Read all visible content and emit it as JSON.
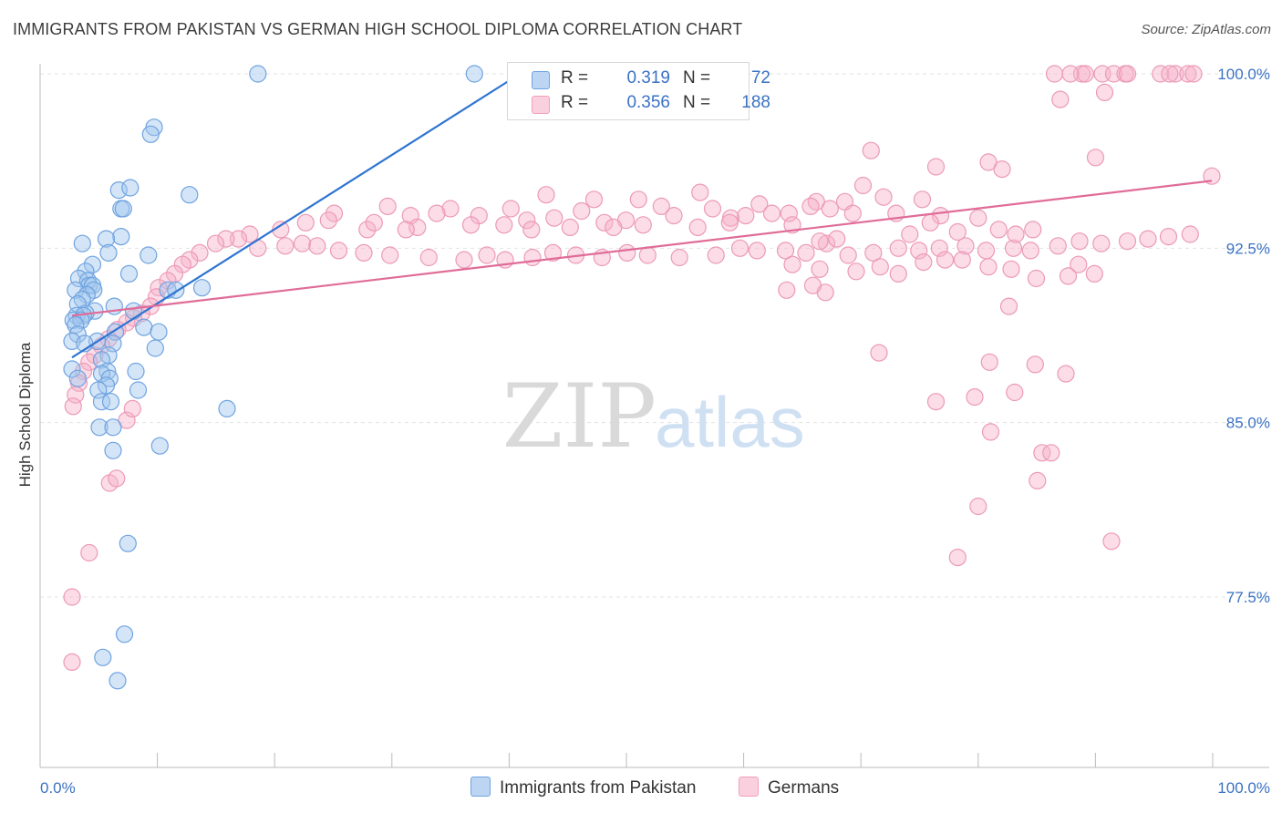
{
  "title": "IMMIGRANTS FROM PAKISTAN VS GERMAN HIGH SCHOOL DIPLOMA CORRELATION CHART",
  "source": "Source: ZipAtlas.com",
  "watermark": {
    "zip": "ZIP",
    "atlas": "atlas"
  },
  "legend": {
    "blue": {
      "r_label": "R =",
      "r_value": "0.319",
      "n_label": "N =",
      "n_value": "72",
      "color": "#6fa3e0"
    },
    "pink": {
      "r_label": "R =",
      "r_value": "0.356",
      "n_label": "N =",
      "n_value": "188",
      "color": "#f0a0bc"
    }
  },
  "bottom_legend": {
    "blue": "Immigrants from Pakistan",
    "pink": "Germans"
  },
  "chart_data": {
    "type": "scatter",
    "title": "IMMIGRANTS FROM PAKISTAN VS GERMAN HIGH SCHOOL DIPLOMA CORRELATION CHART",
    "xlabel": "",
    "ylabel": "High School Diploma",
    "xlim": [
      0,
      100
    ],
    "ylim": [
      71.2,
      101
    ],
    "x_tick_labels": [
      "0.0%",
      "100.0%"
    ],
    "y_ticks": [
      77.5,
      85.0,
      92.5,
      100.0
    ],
    "y_tick_labels": [
      "77.5%",
      "85.0%",
      "92.5%",
      "100.0%"
    ],
    "grid": true,
    "legend_position": "top-center",
    "series": [
      {
        "name": "Immigrants from Pakistan",
        "color": "#6fa3e0",
        "line_color": "#2f75d1",
        "trend": {
          "x0": 0,
          "y0": 87.8,
          "x1": 39.3,
          "y1": 100.0
        },
        "points": [
          [
            16.3,
            100
          ],
          [
            35.3,
            100
          ],
          [
            7.2,
            97.7
          ],
          [
            6.9,
            97.4
          ],
          [
            4.1,
            95.0
          ],
          [
            5.1,
            95.1
          ],
          [
            10.3,
            94.8
          ],
          [
            4.3,
            94.2
          ],
          [
            4.5,
            94.2
          ],
          [
            4.3,
            93.0
          ],
          [
            3.0,
            92.9
          ],
          [
            0.9,
            92.7
          ],
          [
            3.2,
            92.3
          ],
          [
            6.7,
            92.2
          ],
          [
            1.8,
            91.8
          ],
          [
            1.2,
            91.5
          ],
          [
            5.0,
            91.4
          ],
          [
            0.6,
            91.2
          ],
          [
            1.4,
            91.1
          ],
          [
            1.5,
            90.9
          ],
          [
            1.8,
            90.9
          ],
          [
            1.9,
            90.7
          ],
          [
            0.3,
            90.7
          ],
          [
            8.4,
            90.7
          ],
          [
            9.1,
            90.7
          ],
          [
            11.4,
            90.8
          ],
          [
            1.3,
            90.5
          ],
          [
            0.9,
            90.3
          ],
          [
            0.5,
            90.1
          ],
          [
            3.7,
            90.0
          ],
          [
            5.4,
            89.8
          ],
          [
            2.0,
            89.8
          ],
          [
            1.2,
            89.7
          ],
          [
            0.4,
            89.6
          ],
          [
            1.0,
            89.6
          ],
          [
            0.1,
            89.4
          ],
          [
            0.8,
            89.4
          ],
          [
            0.3,
            89.2
          ],
          [
            6.3,
            89.1
          ],
          [
            3.8,
            88.9
          ],
          [
            7.6,
            88.9
          ],
          [
            0.5,
            88.8
          ],
          [
            2.2,
            88.5
          ],
          [
            0.0,
            88.5
          ],
          [
            1.1,
            88.4
          ],
          [
            3.6,
            88.4
          ],
          [
            7.3,
            88.2
          ],
          [
            3.2,
            87.9
          ],
          [
            2.6,
            87.7
          ],
          [
            0.0,
            87.3
          ],
          [
            3.1,
            87.2
          ],
          [
            2.6,
            87.1
          ],
          [
            3.3,
            86.9
          ],
          [
            0.5,
            86.9
          ],
          [
            5.6,
            87.2
          ],
          [
            3.0,
            86.6
          ],
          [
            2.3,
            86.4
          ],
          [
            5.8,
            86.4
          ],
          [
            2.6,
            85.9
          ],
          [
            3.4,
            85.9
          ],
          [
            13.6,
            85.6
          ],
          [
            2.4,
            84.8
          ],
          [
            3.6,
            84.8
          ],
          [
            7.7,
            84.0
          ],
          [
            3.6,
            83.8
          ],
          [
            4.9,
            79.8
          ],
          [
            4.6,
            75.9
          ],
          [
            2.7,
            74.9
          ],
          [
            4.0,
            73.9
          ]
        ]
      },
      {
        "name": "Germans",
        "color": "#f0a0bc",
        "line_color": "#e06c97",
        "trend": {
          "x0": 0,
          "y0": 89.6,
          "x1": 100,
          "y1": 95.4
        },
        "points": [
          [
            86.2,
            100
          ],
          [
            88.6,
            100
          ],
          [
            88.9,
            100
          ],
          [
            87.6,
            100
          ],
          [
            90.4,
            100
          ],
          [
            91.4,
            100
          ],
          [
            92.4,
            100
          ],
          [
            92.6,
            100
          ],
          [
            95.5,
            100
          ],
          [
            96.8,
            100
          ],
          [
            96.3,
            100
          ],
          [
            97.9,
            100
          ],
          [
            98.4,
            100
          ],
          [
            86.7,
            98.9
          ],
          [
            90.6,
            99.2
          ],
          [
            70.1,
            96.7
          ],
          [
            75.8,
            96.0
          ],
          [
            80.4,
            96.2
          ],
          [
            81.6,
            95.9
          ],
          [
            89.8,
            96.4
          ],
          [
            100,
            95.6
          ],
          [
            69.4,
            95.2
          ],
          [
            55.1,
            94.9
          ],
          [
            41.6,
            94.8
          ],
          [
            45.8,
            94.6
          ],
          [
            65.3,
            94.5
          ],
          [
            49.7,
            94.6
          ],
          [
            60.3,
            94.4
          ],
          [
            64.8,
            94.3
          ],
          [
            74.6,
            94.6
          ],
          [
            71.2,
            94.7
          ],
          [
            67.8,
            94.5
          ],
          [
            56.2,
            94.2
          ],
          [
            51.7,
            94.3
          ],
          [
            44.7,
            94.1
          ],
          [
            38.5,
            94.2
          ],
          [
            33.2,
            94.2
          ],
          [
            32.0,
            94.0
          ],
          [
            29.7,
            93.9
          ],
          [
            23.0,
            94.0
          ],
          [
            27.7,
            94.3
          ],
          [
            35.7,
            93.9
          ],
          [
            39.9,
            93.7
          ],
          [
            42.3,
            93.8
          ],
          [
            46.7,
            93.6
          ],
          [
            48.6,
            93.7
          ],
          [
            52.8,
            93.9
          ],
          [
            57.8,
            93.8
          ],
          [
            59.1,
            93.9
          ],
          [
            61.4,
            94.0
          ],
          [
            62.9,
            94.0
          ],
          [
            66.5,
            94.2
          ],
          [
            68.5,
            94.0
          ],
          [
            72.3,
            94.0
          ],
          [
            76.2,
            93.9
          ],
          [
            79.5,
            93.8
          ],
          [
            75.3,
            93.6
          ],
          [
            63.2,
            93.5
          ],
          [
            57.7,
            93.6
          ],
          [
            54.9,
            93.4
          ],
          [
            50.1,
            93.5
          ],
          [
            47.5,
            93.4
          ],
          [
            43.7,
            93.4
          ],
          [
            40.3,
            93.3
          ],
          [
            37.9,
            93.5
          ],
          [
            35.0,
            93.5
          ],
          [
            30.3,
            93.4
          ],
          [
            29.3,
            93.3
          ],
          [
            25.9,
            93.3
          ],
          [
            26.5,
            93.6
          ],
          [
            22.5,
            93.7
          ],
          [
            20.5,
            93.6
          ],
          [
            18.3,
            93.3
          ],
          [
            15.6,
            93.1
          ],
          [
            14.6,
            92.9
          ],
          [
            13.5,
            92.9
          ],
          [
            12.6,
            92.7
          ],
          [
            11.2,
            92.3
          ],
          [
            10.3,
            92.0
          ],
          [
            9.7,
            91.8
          ],
          [
            9.0,
            91.4
          ],
          [
            8.4,
            91.1
          ],
          [
            7.6,
            90.8
          ],
          [
            7.4,
            90.4
          ],
          [
            6.9,
            90.0
          ],
          [
            6.1,
            89.7
          ],
          [
            5.4,
            89.5
          ],
          [
            4.8,
            89.3
          ],
          [
            4.0,
            89.0
          ],
          [
            3.2,
            88.6
          ],
          [
            2.6,
            88.3
          ],
          [
            2.0,
            87.9
          ],
          [
            1.5,
            87.6
          ],
          [
            1.0,
            87.2
          ],
          [
            0.6,
            86.7
          ],
          [
            0.3,
            86.2
          ],
          [
            0.1,
            85.7
          ],
          [
            16.3,
            92.5
          ],
          [
            18.7,
            92.6
          ],
          [
            20.2,
            92.7
          ],
          [
            21.5,
            92.6
          ],
          [
            23.4,
            92.4
          ],
          [
            25.6,
            92.3
          ],
          [
            27.9,
            92.2
          ],
          [
            31.3,
            92.1
          ],
          [
            34.4,
            92.0
          ],
          [
            36.4,
            92.2
          ],
          [
            38.0,
            92.0
          ],
          [
            40.4,
            92.1
          ],
          [
            42.2,
            92.3
          ],
          [
            44.2,
            92.2
          ],
          [
            46.5,
            92.1
          ],
          [
            48.7,
            92.3
          ],
          [
            50.5,
            92.2
          ],
          [
            53.3,
            92.1
          ],
          [
            56.5,
            92.2
          ],
          [
            58.6,
            92.5
          ],
          [
            60.1,
            92.4
          ],
          [
            62.6,
            92.4
          ],
          [
            64.4,
            92.3
          ],
          [
            66.2,
            92.7
          ],
          [
            68.1,
            92.2
          ],
          [
            70.3,
            92.3
          ],
          [
            72.5,
            92.5
          ],
          [
            74.3,
            92.4
          ],
          [
            76.1,
            92.5
          ],
          [
            78.4,
            92.6
          ],
          [
            80.2,
            92.4
          ],
          [
            82.6,
            92.5
          ],
          [
            84.1,
            92.4
          ],
          [
            86.5,
            92.6
          ],
          [
            88.4,
            92.8
          ],
          [
            90.3,
            92.7
          ],
          [
            92.6,
            92.8
          ],
          [
            94.4,
            92.9
          ],
          [
            96.2,
            93.0
          ],
          [
            98.1,
            93.1
          ],
          [
            65.6,
            92.8
          ],
          [
            67.1,
            92.9
          ],
          [
            73.5,
            93.1
          ],
          [
            77.7,
            93.2
          ],
          [
            81.3,
            93.3
          ],
          [
            82.8,
            93.1
          ],
          [
            84.3,
            93.3
          ],
          [
            78.1,
            92.0
          ],
          [
            80.4,
            91.7
          ],
          [
            82.4,
            91.6
          ],
          [
            88.3,
            91.8
          ],
          [
            63.2,
            91.8
          ],
          [
            65.6,
            91.6
          ],
          [
            68.8,
            91.5
          ],
          [
            70.9,
            91.7
          ],
          [
            72.5,
            91.4
          ],
          [
            74.7,
            91.9
          ],
          [
            76.6,
            92.0
          ],
          [
            84.6,
            91.2
          ],
          [
            87.4,
            91.3
          ],
          [
            89.7,
            91.4
          ],
          [
            66.1,
            90.6
          ],
          [
            62.7,
            90.7
          ],
          [
            65.0,
            90.9
          ],
          [
            82.2,
            90.0
          ],
          [
            70.8,
            88.0
          ],
          [
            80.5,
            87.6
          ],
          [
            84.5,
            87.5
          ],
          [
            87.2,
            87.1
          ],
          [
            75.8,
            85.9
          ],
          [
            82.7,
            86.3
          ],
          [
            79.2,
            86.1
          ],
          [
            80.6,
            84.6
          ],
          [
            85.1,
            83.7
          ],
          [
            85.9,
            83.7
          ],
          [
            84.7,
            82.5
          ],
          [
            79.5,
            81.4
          ],
          [
            77.7,
            79.2
          ],
          [
            91.2,
            79.9
          ],
          [
            0.0,
            77.5
          ],
          [
            0.0,
            74.7
          ],
          [
            1.5,
            79.4
          ],
          [
            3.3,
            82.4
          ],
          [
            3.9,
            82.6
          ],
          [
            4.8,
            85.1
          ],
          [
            5.3,
            85.6
          ]
        ]
      }
    ]
  }
}
